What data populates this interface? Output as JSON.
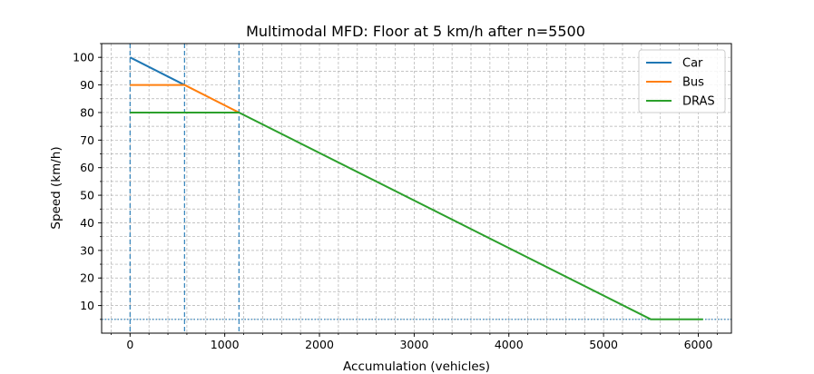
{
  "chart_data": {
    "type": "line",
    "title": "Multimodal MFD: Floor at 5 km/h after n=5500",
    "xlabel": "Accumulation (vehicles)",
    "ylabel": "Speed (km/h)",
    "xlim": [
      -300,
      6350
    ],
    "ylim": [
      0,
      105
    ],
    "xticks": [
      0,
      1000,
      2000,
      3000,
      4000,
      5000,
      6000
    ],
    "yticks": [
      10,
      20,
      30,
      40,
      50,
      60,
      70,
      80,
      90,
      100
    ],
    "grid": true,
    "legend_position": "top-right",
    "series": [
      {
        "name": "Car",
        "color": "#1f77b4",
        "x": [
          0,
          575
        ],
        "y": [
          100,
          90
        ]
      },
      {
        "name": "Bus",
        "color": "#ff7f0e",
        "x": [
          0,
          575,
          1150
        ],
        "y": [
          90,
          90,
          80
        ]
      },
      {
        "name": "DRAS",
        "color": "#2ca02c",
        "x": [
          0,
          1150,
          5500,
          6050
        ],
        "y": [
          80,
          80,
          5,
          5
        ]
      }
    ],
    "reference_lines": {
      "vertical": [
        0,
        575,
        1150
      ],
      "horizontal": [
        5
      ],
      "color": "#1f77b4"
    }
  }
}
